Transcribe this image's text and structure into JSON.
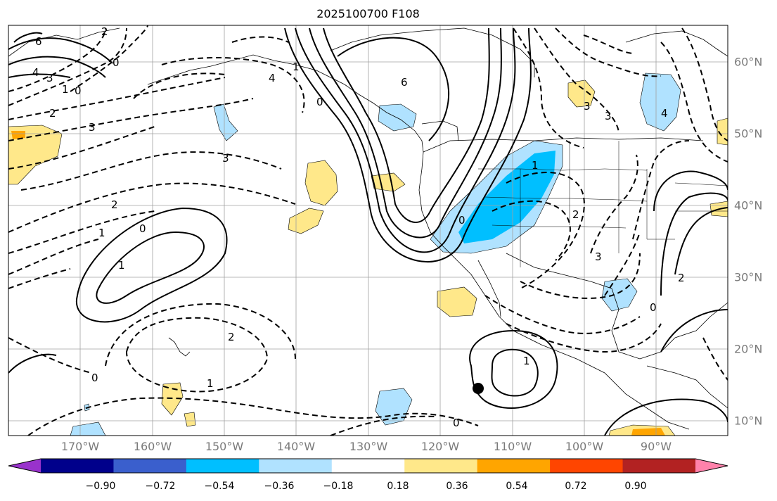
{
  "title": "2025100700 F108",
  "lon_labels": [
    "170°W",
    "160°W",
    "150°W",
    "140°W",
    "130°W",
    "120°W",
    "110°W",
    "100°W",
    "90°W"
  ],
  "lat_labels": [
    "60°N",
    "50°N",
    "40°N",
    "30°N",
    "20°N",
    "10°N"
  ],
  "colorbar": {
    "labels": [
      "−0.90",
      "−0.72",
      "−0.54",
      "−0.36",
      "−0.18",
      "0.18",
      "0.36",
      "0.54",
      "0.72",
      "0.90"
    ],
    "colors": [
      "#9932cc",
      "#00008b",
      "#3a5fcd",
      "#00bfff",
      "#b0e2ff",
      "#ffffff",
      "#ffe88a",
      "#ffa500",
      "#ff4500",
      "#b22222",
      "#ff82ab"
    ]
  },
  "contour_labels": [
    "6",
    "4",
    "3",
    "1",
    "0",
    "2",
    "3",
    "3",
    "2",
    "1",
    "0",
    "1",
    "0",
    "2",
    "1",
    "0",
    "4",
    "6",
    "3",
    "3",
    "4",
    "2",
    "1",
    "0",
    "2",
    "3",
    "2",
    "0",
    "1",
    "0",
    "1",
    "0"
  ],
  "marker": "storm-center-dot"
}
